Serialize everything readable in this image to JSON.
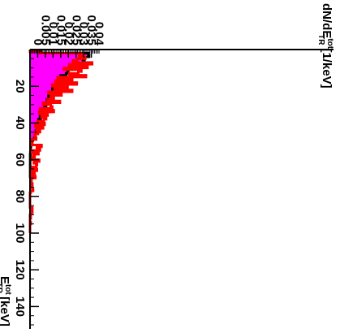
{
  "chart_data": {
    "type": "histogram",
    "orientation": "rotated-90-clockwise",
    "title": "",
    "xlabel": "E_TR^tot [keV]",
    "xlabel_parts": {
      "main": "E",
      "sup": "tot",
      "sub": "TR",
      "unit": "[keV]"
    },
    "ylabel": "dN/dE_TR^tot [1/keV]",
    "ylabel_parts": {
      "main": "dN/dE",
      "sup": "tot",
      "sub": "TR",
      "unit": "[1/keV]"
    },
    "xlim": [
      0,
      150
    ],
    "ylim": [
      0,
      0.045
    ],
    "x_ticks": [
      20,
      40,
      60,
      80,
      100,
      120,
      140
    ],
    "x_tick_labels": [
      "20",
      "40",
      "60",
      "80",
      "100",
      "120",
      "140"
    ],
    "y_ticks": [
      0,
      0.005,
      0.01,
      0.015,
      0.02,
      0.025,
      0.03,
      0.035,
      0.04
    ],
    "y_tick_labels": [
      "0",
      "0.005",
      "0.01",
      "0.015",
      "0.02",
      "0.025",
      "0.03",
      "0.035",
      "0.04"
    ],
    "bin_width": 1,
    "series": [
      {
        "name": "",
        "style": "filled",
        "color": "#ff00ff",
        "values": [
          0.0,
          0.006,
          0.037,
          0.036,
          0.0355,
          0.034,
          0.032,
          0.03,
          0.028,
          0.027,
          0.026,
          0.025,
          0.024,
          0.0225,
          0.0215,
          0.0205,
          0.0195,
          0.0185,
          0.0178,
          0.017,
          0.0162,
          0.0155,
          0.0148,
          0.0142,
          0.0135,
          0.0128,
          0.0122,
          0.0116,
          0.011,
          0.0104,
          0.0098,
          0.0093,
          0.0088,
          0.0083,
          0.0079,
          0.0075,
          0.0071,
          0.0067,
          0.0063,
          0.006,
          0.0056,
          0.0052,
          0.0049,
          0.0045,
          0.0042,
          0.0039,
          0.0036,
          0.0031,
          0.0026,
          0.0012,
          0.0005,
          0.0003,
          0.0002,
          0.0001,
          0.0001,
          0.0001
        ]
      },
      {
        "name": "",
        "style": "step",
        "color": "#000000",
        "values": [
          0.0,
          0.007,
          0.038,
          0.0385,
          0.036,
          0.0345,
          0.0355,
          0.032,
          0.033,
          0.0285,
          0.0275,
          0.0245,
          0.025,
          0.0235,
          0.02,
          0.0225,
          0.0215,
          0.018,
          0.0195,
          0.0165,
          0.0175,
          0.0145,
          0.016,
          0.013,
          0.0155,
          0.012,
          0.0135,
          0.011,
          0.0125,
          0.0095,
          0.0105,
          0.0095,
          0.0085,
          0.009,
          0.0075,
          0.008,
          0.0065,
          0.007,
          0.0055,
          0.0062,
          0.005,
          0.0058,
          0.0045,
          0.0048,
          0.0038,
          0.0044,
          0.0035,
          0.0032,
          0.0028,
          0.0015,
          0.0008,
          0.0006,
          0.0006,
          0.0004,
          0.0003,
          0.0003,
          0.0002,
          0.0001,
          0.0002,
          0.0001,
          0.0001,
          0.0001,
          0.0001,
          0.0001,
          0.0001,
          0.0001,
          0.0001,
          0.0001,
          0.0001,
          0.0001
        ]
      },
      {
        "name": "",
        "style": "step",
        "color": "#ff0000",
        "values": [
          0.0,
          0.0065,
          0.0345,
          0.032,
          0.036,
          0.0305,
          0.028,
          0.0405,
          0.0255,
          0.0375,
          0.022,
          0.0335,
          0.0315,
          0.0255,
          0.0365,
          0.018,
          0.0275,
          0.0165,
          0.0305,
          0.0145,
          0.0245,
          0.016,
          0.0275,
          0.012,
          0.0205,
          0.0135,
          0.0155,
          0.0115,
          0.0195,
          0.0085,
          0.0135,
          0.0145,
          0.0065,
          0.0155,
          0.006,
          0.0115,
          0.0075,
          0.0105,
          0.009,
          0.005,
          0.0095,
          0.0035,
          0.0085,
          0.0042,
          0.0065,
          0.0052,
          0.003,
          0.0035,
          0.004,
          0.001,
          0.0015,
          0.0012,
          0.0075,
          0.0045,
          0.0065,
          0.0012,
          0.0055,
          0.002,
          0.003,
          0.0015,
          0.006,
          0.0025,
          0.0045,
          0.004,
          0.0015,
          0.0045,
          0.001,
          0.003,
          0.0005,
          0.0035,
          0.0005,
          0.001,
          0.0005,
          0.0015,
          0.0005,
          0.0015,
          0.002,
          0.0005,
          0.0,
          0.0,
          0.0,
          0.0,
          0.0,
          0.0,
          0.0,
          0.0,
          0.0015,
          0.001,
          0.0015,
          0.0005,
          0.0,
          0.0005,
          0.0,
          0.0,
          0.0005,
          0.0,
          0.0,
          0.0,
          0.0,
          0.0
        ]
      }
    ]
  }
}
